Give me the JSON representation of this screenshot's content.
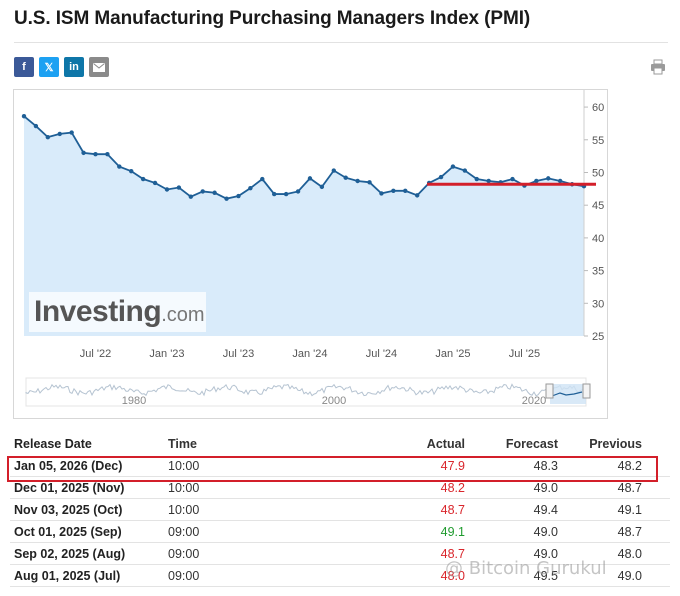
{
  "title": "U.S. ISM Manufacturing Purchasing Managers Index (PMI)",
  "share": {
    "facebook": "f",
    "twitter": "𝕏",
    "linkedin": "in",
    "email_icon": "envelope-icon",
    "print_icon": "printer-icon"
  },
  "colors": {
    "line": "#1f5f96",
    "area": "#d9ebfa",
    "highlight_line": "#d31f2a",
    "actual_down": "#d9262c",
    "actual_up": "#1f9b2e"
  },
  "logo": {
    "main": "Investing",
    "domain": ".com"
  },
  "chart_data": {
    "type": "line",
    "title": "",
    "xlabel": "",
    "ylabel": "",
    "ylim": [
      25,
      62
    ],
    "y_ticks": [
      25,
      30,
      35,
      40,
      45,
      50,
      55,
      60
    ],
    "x_ticks": [
      "Jul '22",
      "Jan '23",
      "Jul '23",
      "Jan '24",
      "Jul '24",
      "Jan '25",
      "Jul '25"
    ],
    "y_axis_side": "right",
    "grid": false,
    "series": [
      {
        "x": [
          "Jan '22",
          "Feb '22",
          "Mar '22",
          "Apr '22",
          "May '22",
          "Jun '22",
          "Jul '22",
          "Aug '22",
          "Sep '22",
          "Oct '22",
          "Nov '22",
          "Dec '22",
          "Jan '23",
          "Feb '23",
          "Mar '23",
          "Apr '23",
          "May '23",
          "Jun '23",
          "Jul '23",
          "Aug '23",
          "Sep '23",
          "Oct '23",
          "Nov '23",
          "Dec '23",
          "Jan '24",
          "Feb '24",
          "Mar '24",
          "Apr '24",
          "May '24",
          "Jun '24",
          "Jul '24",
          "Aug '24",
          "Sep '24",
          "Oct '24",
          "Nov '24",
          "Dec '24",
          "Jan '25",
          "Feb '25",
          "Mar '25",
          "Apr '25",
          "May '25",
          "Jun '25",
          "Jul '25",
          "Aug '25",
          "Sep '25",
          "Oct '25",
          "Nov '25",
          "Dec '25"
        ],
        "values": [
          58.6,
          57.1,
          55.4,
          55.9,
          56.1,
          53.0,
          52.8,
          52.8,
          50.9,
          50.2,
          49.0,
          48.4,
          47.4,
          47.7,
          46.3,
          47.1,
          46.9,
          46.0,
          46.4,
          47.6,
          49.0,
          46.7,
          46.7,
          47.1,
          49.1,
          47.8,
          50.3,
          49.2,
          48.7,
          48.5,
          46.8,
          47.2,
          47.2,
          46.5,
          48.4,
          49.3,
          50.9,
          50.3,
          49.0,
          48.7,
          48.5,
          49.0,
          48.0,
          48.7,
          49.1,
          48.7,
          48.2,
          47.9
        ]
      }
    ],
    "highlight_level": 48.2,
    "highlight_from": "Nov '24",
    "navigator": {
      "labels": [
        "1980",
        "2000",
        "2020"
      ]
    }
  },
  "table": {
    "headers": {
      "date": "Release Date",
      "time": "Time",
      "actual": "Actual",
      "forecast": "Forecast",
      "previous": "Previous"
    },
    "rows": [
      {
        "date": "Jan 05, 2026 (Dec)",
        "time": "10:00",
        "actual": "47.9",
        "dir": "down",
        "forecast": "48.3",
        "previous": "48.2"
      },
      {
        "date": "Dec 01, 2025 (Nov)",
        "time": "10:00",
        "actual": "48.2",
        "dir": "down",
        "forecast": "49.0",
        "previous": "48.7"
      },
      {
        "date": "Nov 03, 2025 (Oct)",
        "time": "10:00",
        "actual": "48.7",
        "dir": "down",
        "forecast": "49.4",
        "previous": "49.1"
      },
      {
        "date": "Oct 01, 2025 (Sep)",
        "time": "09:00",
        "actual": "49.1",
        "dir": "up",
        "forecast": "49.0",
        "previous": "48.7"
      },
      {
        "date": "Sep 02, 2025 (Aug)",
        "time": "09:00",
        "actual": "48.7",
        "dir": "down",
        "forecast": "49.0",
        "previous": "48.0"
      },
      {
        "date": "Aug 01, 2025 (Jul)",
        "time": "09:00",
        "actual": "48.0",
        "dir": "down",
        "forecast": "49.5",
        "previous": "49.0"
      }
    ]
  },
  "watermark": "@ Bitcoin Gurukul"
}
